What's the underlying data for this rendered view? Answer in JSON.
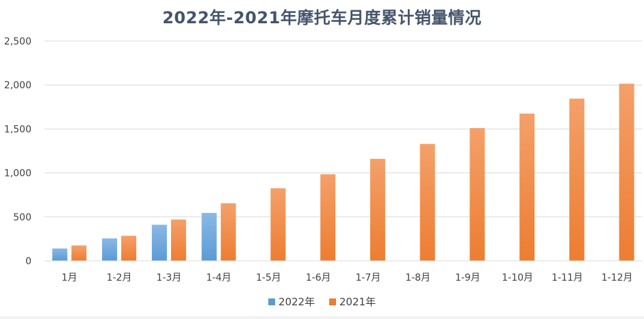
{
  "chart_data": {
    "type": "bar",
    "title": "2022年-2021年摩托车月度累计销量情况",
    "xlabel": "",
    "ylabel": "",
    "ylim": [
      0,
      2500
    ],
    "yticks": [
      0,
      500,
      1000,
      1500,
      2000,
      2500
    ],
    "ytick_labels": [
      "0",
      "500",
      "1,000",
      "1,500",
      "2,000",
      "2,500"
    ],
    "categories": [
      "1月",
      "1-2月",
      "1-3月",
      "1-4月",
      "1-5月",
      "1-6月",
      "1-7月",
      "1-8月",
      "1-9月",
      "1-10月",
      "1-11月",
      "1-12月"
    ],
    "series": [
      {
        "name": "2022年",
        "color": "#5b9bd5",
        "color_light": "#8ab8e6",
        "values": [
          140,
          255,
          410,
          545,
          null,
          null,
          null,
          null,
          null,
          null,
          null,
          null
        ]
      },
      {
        "name": "2021年",
        "color": "#ed7d31",
        "color_light": "#f4a06a",
        "values": [
          175,
          285,
          470,
          655,
          825,
          985,
          1160,
          1330,
          1510,
          1675,
          1845,
          2015
        ]
      }
    ],
    "legend_position": "bottom",
    "grid": true
  }
}
